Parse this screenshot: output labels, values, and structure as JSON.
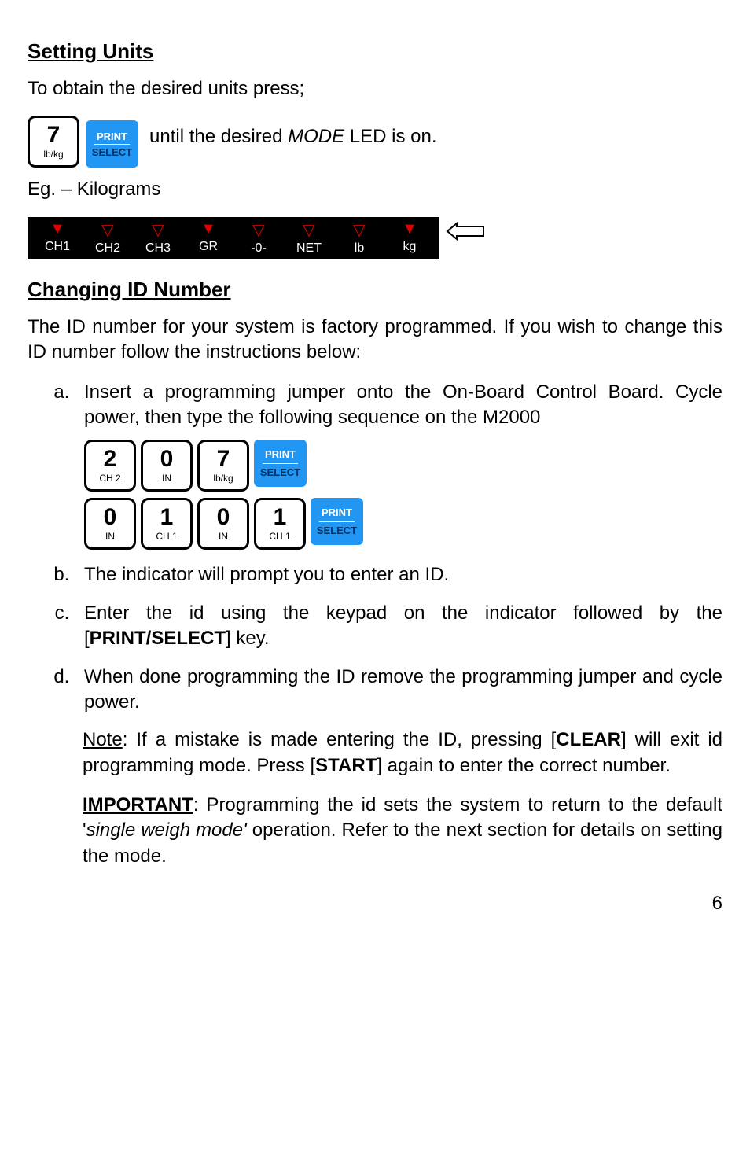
{
  "section1": {
    "heading": "Setting Units",
    "intro": "To obtain the desired units press;",
    "key_num": "7",
    "key_sub": "lb/kg",
    "print_top": "PRINT",
    "print_bot": "SELECT",
    "after_key_pre": " until the desired ",
    "after_key_em": "MODE",
    "after_key_post": " LED is on.",
    "eg": "Eg. – Kilograms",
    "modes": [
      "CH1",
      "CH2",
      "CH3",
      "GR",
      "-0-",
      "NET",
      "lb",
      "kg"
    ],
    "lit": [
      true,
      false,
      false,
      true,
      false,
      false,
      false,
      true
    ]
  },
  "section2": {
    "heading": "Changing ID Number",
    "intro": "The ID number for your system is factory programmed. If you wish to change this ID number follow the instructions below:",
    "step_a": "Insert a programming jumper onto the On-Board Control Board. Cycle power, then type the following sequence on the M2000",
    "seq1": [
      {
        "num": "2",
        "sub": "CH 2"
      },
      {
        "num": "0",
        "sub": "IN"
      },
      {
        "num": "7",
        "sub": "lb/kg"
      }
    ],
    "seq2": [
      {
        "num": "0",
        "sub": "IN"
      },
      {
        "num": "1",
        "sub": "CH 1"
      },
      {
        "num": "0",
        "sub": "IN"
      },
      {
        "num": "1",
        "sub": "CH 1"
      }
    ],
    "step_b": "The indicator will prompt you to enter an ID.",
    "step_c_pre": "Enter the id using the keypad on the indicator followed by the [",
    "step_c_bold": "PRINT/SELECT",
    "step_c_post": "] key.",
    "step_d": "When done programming the ID remove the programming jumper and cycle power.",
    "note_label": "Note",
    "note_1": ": If a mistake is made entering the ID, pressing [",
    "note_bold1": "CLEAR",
    "note_2": "] will exit id programming mode. Press [",
    "note_bold2": "START",
    "note_3": "] again to enter the correct number.",
    "imp_label": "IMPORTANT",
    "imp_1": ": Programming the id sets the system to return to the default '",
    "imp_em": "single weigh mode'",
    "imp_2": " operation. Refer to the next section for details on setting the mode."
  },
  "page_number": "6",
  "style": {
    "blue_key_bg": "#2196f3",
    "blue_key_bot_color": "#003366",
    "tri_color": "#d00"
  }
}
